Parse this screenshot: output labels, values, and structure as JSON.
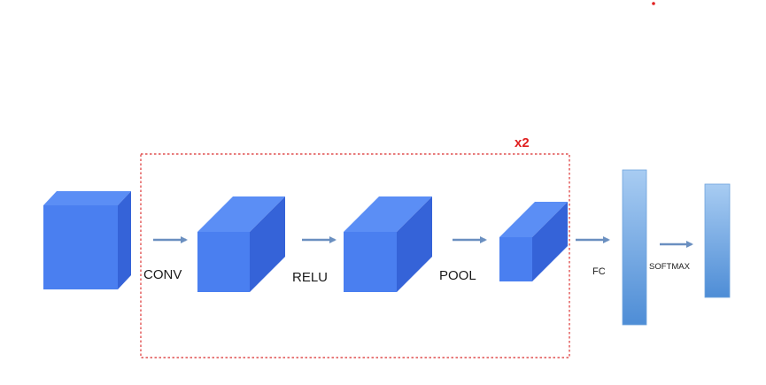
{
  "diagram": {
    "repeat_label": "x2",
    "stages": {
      "conv": "CONV",
      "relu": "RELU",
      "pool": "POOL",
      "fc": "FC",
      "softmax": "SOFTMAX"
    },
    "colors": {
      "cube_front": "#4a7ff0",
      "cube_top": "#5b8ef5",
      "cube_side": "#3563d8",
      "arrow": "#6a8fc0",
      "repeat_box": "#e05050",
      "repeat_text": "#e02020",
      "bar_light": "#a8ccf2",
      "bar_dark": "#4e8dd6"
    }
  }
}
